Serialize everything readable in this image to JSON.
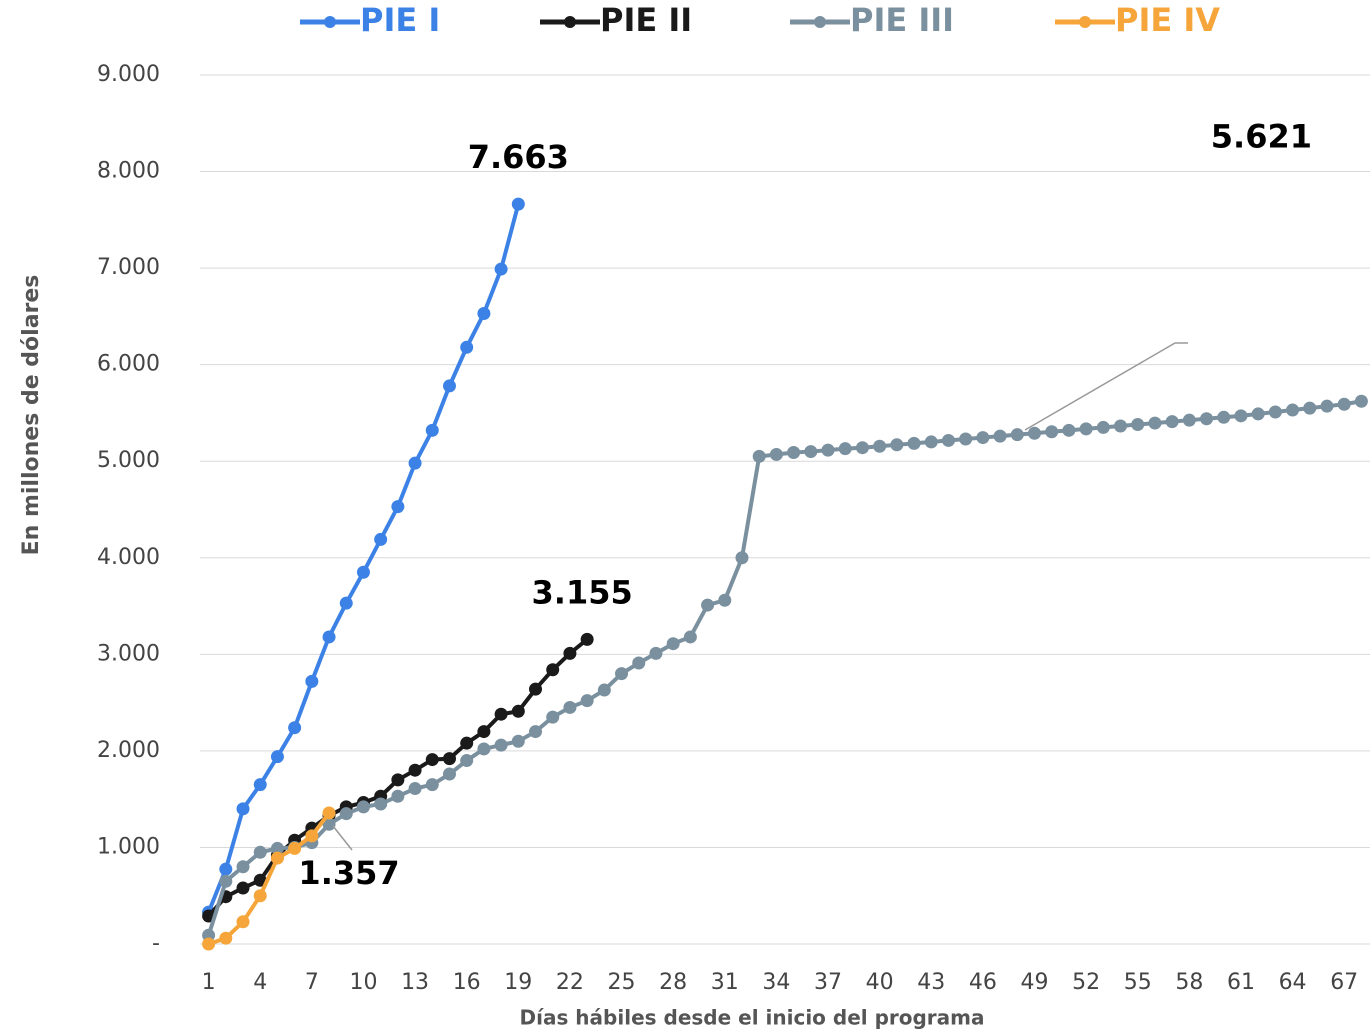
{
  "chart_data": {
    "type": "line",
    "y_label": "En millones de dólares",
    "x_label": "Días hábiles desde el inicio del programa",
    "xlim": [
      0.5,
      68.5
    ],
    "xticks": [
      1,
      4,
      7,
      10,
      13,
      16,
      19,
      22,
      25,
      28,
      31,
      34,
      37,
      40,
      43,
      46,
      49,
      52,
      55,
      58,
      61,
      64,
      67
    ],
    "ylim": [
      0,
      9000
    ],
    "yticks": [
      {
        "value": 0,
        "label": "-"
      },
      {
        "value": 1000,
        "label": "1.000"
      },
      {
        "value": 2000,
        "label": "2.000"
      },
      {
        "value": 3000,
        "label": "3.000"
      },
      {
        "value": 4000,
        "label": "4.000"
      },
      {
        "value": 5000,
        "label": "5.000"
      },
      {
        "value": 6000,
        "label": "6.000"
      },
      {
        "value": 7000,
        "label": "7.000"
      },
      {
        "value": 8000,
        "label": "8.000"
      },
      {
        "value": 9000,
        "label": "9.000"
      }
    ],
    "grid": true,
    "legend": "top",
    "series": [
      {
        "name": "PIE I",
        "color": "#3c82e6",
        "x": [
          1,
          2,
          3,
          4,
          5,
          6,
          7,
          8,
          9,
          10,
          11,
          12,
          13,
          14,
          15,
          16,
          17,
          18,
          19
        ],
        "values": [
          330,
          775,
          1400,
          1650,
          1940,
          2240,
          2720,
          3180,
          3530,
          3850,
          4190,
          4530,
          4980,
          5320,
          5780,
          6180,
          6530,
          6990,
          7663
        ],
        "value_labels": [
          null,
          null,
          null,
          null,
          null,
          null,
          null,
          null,
          null,
          null,
          null,
          null,
          null,
          null,
          null,
          null,
          null,
          null,
          "7.663"
        ]
      },
      {
        "name": "PIE II",
        "color": "#1a1a1a",
        "x": [
          1,
          2,
          3,
          4,
          5,
          6,
          7,
          8,
          9,
          10,
          11,
          12,
          13,
          14,
          15,
          16,
          17,
          18,
          19,
          20,
          21,
          22,
          23
        ],
        "values": [
          290,
          490,
          580,
          660,
          920,
          1075,
          1200,
          1330,
          1420,
          1465,
          1530,
          1700,
          1800,
          1910,
          1920,
          2080,
          2200,
          2380,
          2410,
          2640,
          2840,
          3010,
          3155
        ],
        "value_labels": [
          null,
          null,
          null,
          null,
          null,
          null,
          null,
          null,
          null,
          null,
          null,
          null,
          null,
          null,
          null,
          null,
          null,
          null,
          null,
          null,
          null,
          null,
          "3.155"
        ]
      },
      {
        "name": "PIE III",
        "color": "#7a909e",
        "x": [
          1,
          2,
          3,
          4,
          5,
          6,
          7,
          8,
          9,
          10,
          11,
          12,
          13,
          14,
          15,
          16,
          17,
          18,
          19,
          20,
          21,
          22,
          23,
          24,
          25,
          26,
          27,
          28,
          29,
          30,
          31,
          32,
          33,
          34,
          35,
          36,
          37,
          38,
          39,
          40,
          41,
          42,
          43,
          44,
          45,
          46,
          47,
          48,
          49,
          50,
          51,
          52,
          53,
          54,
          55,
          56,
          57,
          58,
          59,
          60,
          61,
          62,
          63,
          64,
          65,
          66,
          67,
          68
        ],
        "values": [
          90,
          650,
          800,
          950,
          990,
          1000,
          1050,
          1240,
          1350,
          1420,
          1450,
          1530,
          1610,
          1650,
          1760,
          1900,
          2020,
          2060,
          2100,
          2200,
          2350,
          2450,
          2520,
          2630,
          2800,
          2910,
          3010,
          3110,
          3180,
          3510,
          3560,
          4000,
          5050,
          5070,
          5090,
          5100,
          5115,
          5130,
          5140,
          5155,
          5170,
          5185,
          5200,
          5215,
          5230,
          5245,
          5260,
          5275,
          5290,
          5305,
          5320,
          5335,
          5350,
          5365,
          5380,
          5395,
          5410,
          5425,
          5440,
          5455,
          5470,
          5490,
          5510,
          5530,
          5550,
          5570,
          5590,
          5621
        ],
        "value_labels": [
          null,
          null,
          null,
          null,
          null,
          null,
          null,
          null,
          null,
          null,
          null,
          null,
          null,
          null,
          null,
          null,
          null,
          null,
          null,
          null,
          null,
          null,
          null,
          null,
          null,
          null,
          null,
          null,
          null,
          null,
          null,
          null,
          null,
          null,
          null,
          null,
          null,
          null,
          null,
          null,
          null,
          null,
          null,
          null,
          null,
          null,
          null,
          null,
          null,
          null,
          null,
          null,
          null,
          null,
          null,
          null,
          null,
          null,
          null,
          null,
          null,
          null,
          null,
          null,
          null,
          null,
          null,
          "5.621"
        ]
      },
      {
        "name": "PIE IV",
        "color": "#f5a53a",
        "x": [
          1,
          2,
          3,
          4,
          5,
          6,
          7,
          8
        ],
        "values": [
          0,
          60,
          230,
          500,
          890,
          990,
          1120,
          1357
        ],
        "value_labels": [
          null,
          null,
          null,
          null,
          null,
          null,
          null,
          "1.357"
        ]
      }
    ]
  }
}
